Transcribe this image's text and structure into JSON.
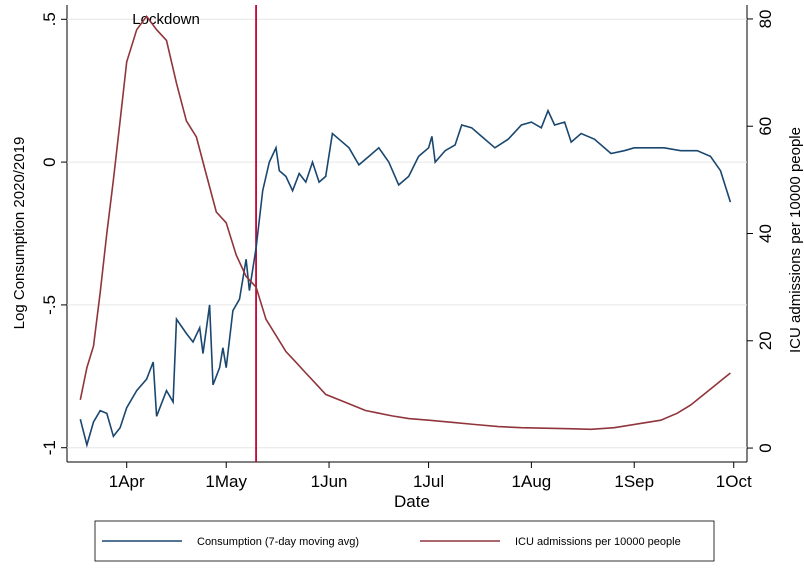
{
  "chart_data": {
    "type": "line",
    "annotations": [
      {
        "text": "Lockdown",
        "x": "10May"
      }
    ],
    "xlabel": "Date",
    "ylabel": "Log Consumption 2020/2019",
    "y2label": "ICU admissions per 10000 people",
    "xlim": [
      "14Mar",
      "5Oct"
    ],
    "xticks": [
      "1Apr",
      "1May",
      "1Jun",
      "1Jul",
      "1Aug",
      "1Sep",
      "1Oct"
    ],
    "ylim": [
      -1.05,
      0.55
    ],
    "yticks": [
      {
        "value": -1,
        "label": "-1"
      },
      {
        "value": -0.5,
        "label": "-.5"
      },
      0,
      {
        "value": 0.5,
        "label": ".5"
      }
    ],
    "y2lim": [
      -2.6,
      82.6
    ],
    "y2ticks": [
      0,
      20,
      40,
      60,
      80
    ],
    "grid": true,
    "legend": "bottom",
    "vline_color": "#c10534",
    "series": [
      {
        "name": "Consumption (7-day moving avg)",
        "color": "#1a476f",
        "x": [
          "18Mar",
          "20Mar",
          "22Mar",
          "24Mar",
          "26Mar",
          "28Mar",
          "30Mar",
          "1Apr",
          "4Apr",
          "7Apr",
          "9Apr",
          "10Apr",
          "13Apr",
          "15Apr",
          "16Apr",
          "19Apr",
          "21Apr",
          "23Apr",
          "24Apr",
          "26Apr",
          "27Apr",
          "29Apr",
          "30Apr",
          "1May",
          "3May",
          "5May",
          "7May",
          "8May",
          "10May",
          "12May",
          "14May",
          "16May",
          "17May",
          "19May",
          "21May",
          "23May",
          "25May",
          "27May",
          "29May",
          "31May",
          "2Jun",
          "4Jun",
          "7Jun",
          "10Jun",
          "13Jun",
          "16Jun",
          "19Jun",
          "22Jun",
          "25Jun",
          "28Jun",
          "1Jul",
          "2Jul",
          "3Jul",
          "6Jul",
          "9Jul",
          "11Jul",
          "14Jul",
          "17Jul",
          "21Jul",
          "25Jul",
          "29Jul",
          "1Aug",
          "4Aug",
          "6Aug",
          "8Aug",
          "11Aug",
          "13Aug",
          "16Aug",
          "20Aug",
          "25Aug",
          "29Aug",
          "1Sep",
          "5Sep",
          "10Sep",
          "15Sep",
          "20Sep",
          "24Sep",
          "27Sep",
          "30Sep"
        ],
        "values": [
          -0.9,
          -0.99,
          -0.91,
          -0.87,
          -0.88,
          -0.96,
          -0.93,
          -0.86,
          -0.8,
          -0.76,
          -0.7,
          -0.89,
          -0.8,
          -0.84,
          -0.55,
          -0.6,
          -0.63,
          -0.58,
          -0.67,
          -0.5,
          -0.78,
          -0.72,
          -0.65,
          -0.72,
          -0.52,
          -0.48,
          -0.34,
          -0.45,
          -0.3,
          -0.1,
          0.0,
          0.05,
          -0.03,
          -0.05,
          -0.1,
          -0.04,
          -0.07,
          0.0,
          -0.07,
          -0.05,
          0.1,
          0.08,
          0.05,
          -0.01,
          0.02,
          0.05,
          0.0,
          -0.08,
          -0.05,
          0.02,
          0.05,
          0.09,
          0.0,
          0.04,
          0.06,
          0.13,
          0.12,
          0.09,
          0.05,
          0.08,
          0.13,
          0.14,
          0.12,
          0.18,
          0.13,
          0.14,
          0.07,
          0.1,
          0.08,
          0.03,
          0.04,
          0.05,
          0.05,
          0.05,
          0.04,
          0.04,
          0.02,
          -0.03,
          -0.14
        ]
      },
      {
        "name": "ICU admissions per 10000 people",
        "color": "#90353b",
        "axis": "y2",
        "x": [
          "18Mar",
          "20Mar",
          "22Mar",
          "24Mar",
          "26Mar",
          "28Mar",
          "30Mar",
          "1Apr",
          "4Apr",
          "7Apr",
          "10Apr",
          "13Apr",
          "16Apr",
          "19Apr",
          "22Apr",
          "25Apr",
          "28Apr",
          "1May",
          "4May",
          "7May",
          "10May",
          "13May",
          "16May",
          "19May",
          "22May",
          "25May",
          "28May",
          "31May",
          "4Jun",
          "8Jun",
          "12Jun",
          "16Jun",
          "20Jun",
          "25Jun",
          "1Jul",
          "8Jul",
          "15Jul",
          "22Jul",
          "29Jul",
          "5Aug",
          "12Aug",
          "19Aug",
          "26Aug",
          "2Sep",
          "9Sep",
          "14Sep",
          "18Sep",
          "22Sep",
          "26Sep",
          "30Sep"
        ],
        "values": [
          9,
          15,
          19,
          29,
          40,
          50,
          61,
          72,
          78,
          80.5,
          78,
          76,
          68,
          61,
          58,
          51,
          44,
          42,
          36,
          32,
          30,
          24,
          21,
          18,
          16,
          14,
          12,
          10,
          9,
          8,
          7,
          6.5,
          6,
          5.5,
          5.2,
          4.8,
          4.4,
          4,
          3.8,
          3.7,
          3.6,
          3.5,
          3.8,
          4.5,
          5.2,
          6.5,
          8,
          10,
          12,
          14
        ]
      }
    ]
  }
}
